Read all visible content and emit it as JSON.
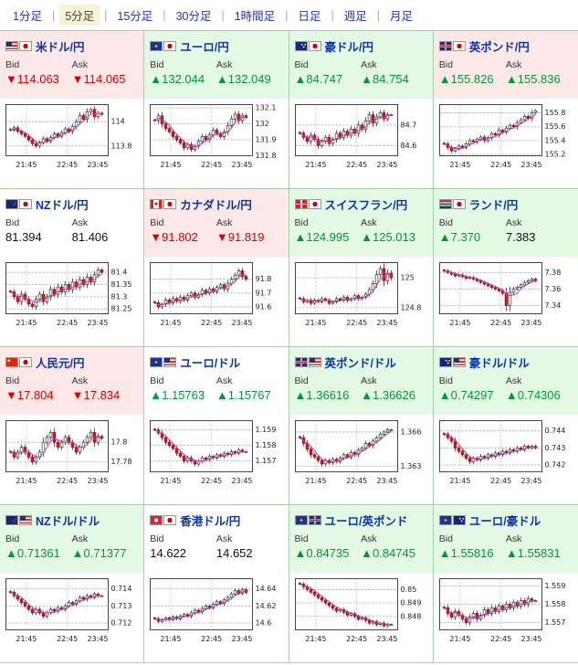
{
  "tab_separator": "|",
  "tabs": [
    {
      "id": "1min",
      "label": "1分足",
      "selected": false
    },
    {
      "id": "5min",
      "label": "5分足",
      "selected": true
    },
    {
      "id": "15min",
      "label": "15分足",
      "selected": false
    },
    {
      "id": "30min",
      "label": "30分足",
      "selected": false
    },
    {
      "id": "1hour",
      "label": "1時間足",
      "selected": false
    },
    {
      "id": "daily",
      "label": "日足",
      "selected": false
    },
    {
      "id": "weekly",
      "label": "週足",
      "selected": false
    },
    {
      "id": "monthly",
      "label": "月足",
      "selected": false
    }
  ],
  "labels": {
    "bid": "Bid",
    "ask": "Ask"
  },
  "glyphs": {
    "up": "▲",
    "down": "▼",
    "none": ""
  },
  "colors": {
    "up_text": "#009933",
    "down_text": "#dd0000",
    "flat_text": "#111111",
    "header_up": "#e4f9e4",
    "header_down": "#fde8e8",
    "header_flat": "#ffffff",
    "pair_link": "#0a35a8",
    "tab_link": "#2233cc",
    "ma_line": "#c03ac0",
    "candle_down_fill": "#c42020",
    "candle_down_stroke": "#8f1515",
    "candle_up_fill": "#ffffff",
    "candle_up_stroke": "#333333",
    "grid_line": "#999999"
  },
  "panels": [
    {
      "id": "usdjpy",
      "pair": "米ドル/円",
      "flags": [
        "us",
        "jp"
      ],
      "tone": "down",
      "bid": {
        "dir": "down",
        "value": "114.063"
      },
      "ask": {
        "dir": "down",
        "value": "114.065"
      },
      "chart": {
        "ymin": 113.72,
        "ymax": 114.14,
        "yticks": [
          {
            "v": 114,
            "t": "114"
          },
          {
            "v": 113.8,
            "t": "113.8"
          }
        ],
        "xlabels": [
          "21:45",
          "22:45",
          "23:45"
        ],
        "closes": [
          113.93,
          113.95,
          113.92,
          113.9,
          113.88,
          113.85,
          113.82,
          113.8,
          113.83,
          113.86,
          113.84,
          113.87,
          113.9,
          113.88,
          113.91,
          113.94,
          113.92,
          113.96,
          114.0,
          114.05,
          114.02,
          114.08,
          114.1,
          114.04,
          114.07,
          114.06
        ]
      }
    },
    {
      "id": "eurjpy",
      "pair": "ユーロ/円",
      "flags": [
        "eu",
        "jp"
      ],
      "tone": "up",
      "bid": {
        "dir": "up",
        "value": "132.044"
      },
      "ask": {
        "dir": "up",
        "value": "132.049"
      },
      "chart": {
        "ymin": 131.8,
        "ymax": 132.12,
        "yticks": [
          {
            "v": 132.1,
            "t": "132.1"
          },
          {
            "v": 132,
            "t": "132"
          },
          {
            "v": 131.9,
            "t": "131.9"
          },
          {
            "v": 131.8,
            "t": "131.8"
          }
        ],
        "xlabels": [
          "21:45",
          "22:45",
          "23:45"
        ],
        "closes": [
          132.02,
          132.05,
          132.0,
          131.97,
          131.95,
          131.92,
          131.9,
          131.88,
          131.85,
          131.87,
          131.84,
          131.86,
          131.89,
          131.92,
          131.9,
          131.93,
          131.96,
          131.94,
          131.92,
          131.95,
          131.99,
          132.03,
          132.06,
          132.02,
          132.05,
          132.04
        ]
      }
    },
    {
      "id": "audjpy",
      "pair": "豪ドル/円",
      "flags": [
        "au",
        "jp"
      ],
      "tone": "up",
      "bid": {
        "dir": "up",
        "value": "84.747"
      },
      "ask": {
        "dir": "up",
        "value": "84.754"
      },
      "chart": {
        "ymin": 84.55,
        "ymax": 84.8,
        "yticks": [
          {
            "v": 84.7,
            "t": "84.7"
          },
          {
            "v": 84.6,
            "t": "84.6"
          }
        ],
        "xlabels": [
          "21:45",
          "22:45",
          "23:45"
        ],
        "closes": [
          84.66,
          84.64,
          84.62,
          84.65,
          84.63,
          84.6,
          84.62,
          84.64,
          84.61,
          84.63,
          84.66,
          84.64,
          84.67,
          84.65,
          84.68,
          84.66,
          84.7,
          84.68,
          84.72,
          84.75,
          84.71,
          84.74,
          84.76,
          84.73,
          84.75,
          84.75
        ]
      }
    },
    {
      "id": "gbpjpy",
      "pair": "英ポンド/円",
      "flags": [
        "gb",
        "jp"
      ],
      "tone": "down",
      "bid": {
        "dir": "up",
        "value": "155.826"
      },
      "ask": {
        "dir": "up",
        "value": "155.836"
      },
      "chart": {
        "ymin": 155.18,
        "ymax": 155.92,
        "yticks": [
          {
            "v": 155.8,
            "t": "155.8"
          },
          {
            "v": 155.6,
            "t": "155.6"
          },
          {
            "v": 155.4,
            "t": "155.4"
          },
          {
            "v": 155.2,
            "t": "155.2"
          }
        ],
        "xlabels": [
          "21:45",
          "22:45",
          "23:45"
        ],
        "closes": [
          155.35,
          155.3,
          155.25,
          155.28,
          155.32,
          155.3,
          155.35,
          155.4,
          155.38,
          155.42,
          155.45,
          155.4,
          155.44,
          155.5,
          155.48,
          155.55,
          155.52,
          155.58,
          155.62,
          155.6,
          155.66,
          155.7,
          155.75,
          155.72,
          155.8,
          155.83
        ]
      }
    },
    {
      "id": "nzdjpy",
      "pair": "NZドル/円",
      "flags": [
        "nz",
        "jp"
      ],
      "tone": "flat",
      "bid": {
        "dir": "none",
        "value": "81.394"
      },
      "ask": {
        "dir": "none",
        "value": "81.406"
      },
      "chart": {
        "ymin": 81.23,
        "ymax": 81.44,
        "yticks": [
          {
            "v": 81.4,
            "t": "81.4"
          },
          {
            "v": 81.35,
            "t": "81.35"
          },
          {
            "v": 81.3,
            "t": "81.3"
          },
          {
            "v": 81.25,
            "t": "81.25"
          }
        ],
        "xlabels": [
          "21:45",
          "22:45",
          "23:45"
        ],
        "closes": [
          81.32,
          81.3,
          81.28,
          81.31,
          81.29,
          81.27,
          81.26,
          81.29,
          81.31,
          81.28,
          81.3,
          81.33,
          81.31,
          81.34,
          81.32,
          81.35,
          81.33,
          81.36,
          81.34,
          81.37,
          81.35,
          81.38,
          81.36,
          81.39,
          81.41,
          81.4
        ]
      }
    },
    {
      "id": "cadjpy",
      "pair": "カナダドル/円",
      "flags": [
        "ca",
        "jp"
      ],
      "tone": "down",
      "bid": {
        "dir": "down",
        "value": "91.802"
      },
      "ask": {
        "dir": "down",
        "value": "91.819"
      },
      "chart": {
        "ymin": 91.55,
        "ymax": 91.92,
        "yticks": [
          {
            "v": 91.8,
            "t": "91.8"
          },
          {
            "v": 91.7,
            "t": "91.7"
          },
          {
            "v": 91.6,
            "t": "91.6"
          }
        ],
        "xlabels": [
          "21:45",
          "22:45",
          "23:45"
        ],
        "closes": [
          91.63,
          91.6,
          91.62,
          91.65,
          91.63,
          91.66,
          91.64,
          91.67,
          91.65,
          91.68,
          91.7,
          91.67,
          91.69,
          91.72,
          91.7,
          91.73,
          91.71,
          91.74,
          91.76,
          91.73,
          91.77,
          91.8,
          91.83,
          91.86,
          91.82,
          91.8
        ]
      }
    },
    {
      "id": "chfjpy",
      "pair": "スイスフラン/円",
      "flags": [
        "ch",
        "jp"
      ],
      "tone": "up",
      "bid": {
        "dir": "up",
        "value": "124.995"
      },
      "ask": {
        "dir": "up",
        "value": "125.013"
      },
      "chart": {
        "ymin": 124.76,
        "ymax": 125.1,
        "yticks": [
          {
            "v": 125,
            "t": "125"
          },
          {
            "v": 124.8,
            "t": "124.8"
          }
        ],
        "xlabels": [
          "21:45",
          "22:45",
          "23:45"
        ],
        "closes": [
          124.86,
          124.84,
          124.85,
          124.83,
          124.85,
          124.84,
          124.86,
          124.85,
          124.83,
          124.84,
          124.86,
          124.85,
          124.87,
          124.85,
          124.86,
          124.88,
          124.86,
          124.87,
          124.89,
          124.92,
          124.96,
          125.02,
          125.06,
          124.98,
          125.03,
          125.0
        ]
      }
    },
    {
      "id": "zarjpy",
      "pair": "ランド/円",
      "flags": [
        "za",
        "jp"
      ],
      "tone": "up",
      "bid": {
        "dir": "up",
        "value": "7.370"
      },
      "ask": {
        "dir": "none",
        "value": "7.383"
      },
      "chart": {
        "ymin": 7.33,
        "ymax": 7.392,
        "yticks": [
          {
            "v": 7.38,
            "t": "7.38"
          },
          {
            "v": 7.36,
            "t": "7.36"
          },
          {
            "v": 7.34,
            "t": "7.34"
          }
        ],
        "xlabels": [
          "21:45",
          "22:45",
          "23:45"
        ],
        "closes": [
          7.382,
          7.38,
          7.378,
          7.376,
          7.377,
          7.375,
          7.373,
          7.374,
          7.372,
          7.37,
          7.368,
          7.366,
          7.364,
          7.362,
          7.36,
          7.358,
          7.355,
          7.34,
          7.356,
          7.36,
          7.362,
          7.365,
          7.368,
          7.37,
          7.372,
          7.37
        ]
      }
    },
    {
      "id": "cnyjpy",
      "pair": "人民元/円",
      "flags": [
        "cn",
        "jp"
      ],
      "tone": "down",
      "bid": {
        "dir": "down",
        "value": "17.804"
      },
      "ask": {
        "dir": "down",
        "value": "17.834"
      },
      "chart": {
        "ymin": 17.77,
        "ymax": 17.822,
        "yticks": [
          {
            "v": 17.8,
            "t": "17.8"
          },
          {
            "v": 17.78,
            "t": "17.78"
          }
        ],
        "xlabels": [
          "21:45",
          "22:45",
          "23:45"
        ],
        "closes": [
          17.79,
          17.785,
          17.79,
          17.795,
          17.79,
          17.785,
          17.78,
          17.785,
          17.79,
          17.8,
          17.805,
          17.81,
          17.8,
          17.795,
          17.8,
          17.805,
          17.8,
          17.795,
          17.79,
          17.795,
          17.8,
          17.805,
          17.81,
          17.8,
          17.806,
          17.804
        ]
      }
    },
    {
      "id": "eurusd",
      "pair": "ユーロ/ドル",
      "flags": [
        "eu",
        "us"
      ],
      "tone": "flat",
      "bid": {
        "dir": "up",
        "value": "1.15763"
      },
      "ask": {
        "dir": "up",
        "value": "1.15767"
      },
      "chart": {
        "ymin": 1.1563,
        "ymax": 1.1596,
        "yticks": [
          {
            "v": 1.159,
            "t": "1.159"
          },
          {
            "v": 1.158,
            "t": "1.158"
          },
          {
            "v": 1.157,
            "t": "1.157"
          }
        ],
        "xlabels": [
          "21:45",
          "22:45",
          "23:45"
        ],
        "closes": [
          1.159,
          1.1588,
          1.1585,
          1.1582,
          1.158,
          1.1578,
          1.1575,
          1.1573,
          1.157,
          1.1572,
          1.157,
          1.1568,
          1.157,
          1.1572,
          1.1571,
          1.1573,
          1.1572,
          1.1574,
          1.1573,
          1.1575,
          1.1574,
          1.1576,
          1.1575,
          1.1577,
          1.1576,
          1.1576
        ]
      }
    },
    {
      "id": "gbpusd",
      "pair": "英ポンド/ドル",
      "flags": [
        "gb",
        "us"
      ],
      "tone": "up",
      "bid": {
        "dir": "up",
        "value": "1.36616"
      },
      "ask": {
        "dir": "up",
        "value": "1.36626"
      },
      "chart": {
        "ymin": 1.3625,
        "ymax": 1.367,
        "yticks": [
          {
            "v": 1.366,
            "t": "1.366"
          },
          {
            "v": 1.363,
            "t": "1.363"
          }
        ],
        "xlabels": [
          "21:45",
          "22:45",
          "23:45"
        ],
        "closes": [
          1.3655,
          1.365,
          1.3645,
          1.364,
          1.3638,
          1.3635,
          1.3632,
          1.3635,
          1.3633,
          1.3636,
          1.3634,
          1.3637,
          1.364,
          1.3638,
          1.3642,
          1.364,
          1.3644,
          1.3646,
          1.365,
          1.3648,
          1.3652,
          1.3655,
          1.3658,
          1.366,
          1.3662,
          1.3662
        ]
      }
    },
    {
      "id": "audusd",
      "pair": "豪ドル/ドル",
      "flags": [
        "au",
        "us"
      ],
      "tone": "up",
      "bid": {
        "dir": "up",
        "value": "0.74297"
      },
      "ask": {
        "dir": "up",
        "value": "0.74306"
      },
      "chart": {
        "ymin": 0.7416,
        "ymax": 0.7446,
        "yticks": [
          {
            "v": 0.744,
            "t": "0.744"
          },
          {
            "v": 0.743,
            "t": "0.743"
          },
          {
            "v": 0.742,
            "t": "0.742"
          }
        ],
        "xlabels": [
          "21:45",
          "22:45",
          "23:45"
        ],
        "closes": [
          0.7438,
          0.7436,
          0.7434,
          0.743,
          0.7428,
          0.7426,
          0.7424,
          0.7422,
          0.7424,
          0.7423,
          0.7425,
          0.7424,
          0.7426,
          0.7425,
          0.7427,
          0.7426,
          0.7428,
          0.7427,
          0.7429,
          0.7428,
          0.743,
          0.7429,
          0.7431,
          0.743,
          0.7431,
          0.743
        ]
      }
    },
    {
      "id": "nzdusd",
      "pair": "NZドル/ドル",
      "flags": [
        "nz",
        "us"
      ],
      "tone": "up",
      "bid": {
        "dir": "up",
        "value": "0.71361"
      },
      "ask": {
        "dir": "up",
        "value": "0.71377"
      },
      "chart": {
        "ymin": 0.7116,
        "ymax": 0.7146,
        "yticks": [
          {
            "v": 0.714,
            "t": "0.714"
          },
          {
            "v": 0.713,
            "t": "0.713"
          },
          {
            "v": 0.712,
            "t": "0.712"
          }
        ],
        "xlabels": [
          "21:45",
          "22:45",
          "23:45"
        ],
        "closes": [
          0.7138,
          0.7136,
          0.7134,
          0.7132,
          0.713,
          0.7128,
          0.7126,
          0.7128,
          0.7126,
          0.7124,
          0.7126,
          0.7128,
          0.7127,
          0.7129,
          0.7128,
          0.713,
          0.7132,
          0.7131,
          0.7133,
          0.7135,
          0.7134,
          0.7136,
          0.7135,
          0.7137,
          0.7136,
          0.7136
        ]
      }
    },
    {
      "id": "hkdjpy",
      "pair": "香港ドル/円",
      "flags": [
        "hk",
        "jp"
      ],
      "tone": "flat",
      "bid": {
        "dir": "none",
        "value": "14.622"
      },
      "ask": {
        "dir": "none",
        "value": "14.652"
      },
      "chart": {
        "ymin": 14.592,
        "ymax": 14.652,
        "yticks": [
          {
            "v": 14.64,
            "t": "14.64"
          },
          {
            "v": 14.62,
            "t": "14.62"
          },
          {
            "v": 14.6,
            "t": "14.6"
          }
        ],
        "xlabels": [
          "21:45",
          "22:45",
          "23:45"
        ],
        "closes": [
          14.605,
          14.602,
          14.604,
          14.606,
          14.604,
          14.607,
          14.605,
          14.608,
          14.61,
          14.608,
          14.612,
          14.615,
          14.613,
          14.617,
          14.62,
          14.618,
          14.622,
          14.625,
          14.623,
          14.627,
          14.63,
          14.634,
          14.638,
          14.635,
          14.639,
          14.636
        ]
      }
    },
    {
      "id": "eurgbp",
      "pair": "ユーロ/英ポンド",
      "flags": [
        "eu",
        "gb"
      ],
      "tone": "up",
      "bid": {
        "dir": "up",
        "value": "0.84735"
      },
      "ask": {
        "dir": "up",
        "value": "0.84745"
      },
      "chart": {
        "ymin": 0.847,
        "ymax": 0.8508,
        "yticks": [
          {
            "v": 0.85,
            "t": "0.85"
          },
          {
            "v": 0.849,
            "t": "0.849"
          },
          {
            "v": 0.848,
            "t": "0.848"
          }
        ],
        "xlabels": [
          "21:45",
          "22:45",
          "23:45"
        ],
        "closes": [
          0.8504,
          0.8502,
          0.85,
          0.8498,
          0.8496,
          0.8494,
          0.8492,
          0.849,
          0.8488,
          0.8486,
          0.8484,
          0.8485,
          0.8483,
          0.8481,
          0.8482,
          0.848,
          0.8478,
          0.8479,
          0.8477,
          0.8475,
          0.8476,
          0.8474,
          0.8475,
          0.8473,
          0.8474,
          0.8474
        ]
      }
    },
    {
      "id": "euraud",
      "pair": "ユーロ/豪ドル",
      "flags": [
        "eu",
        "au"
      ],
      "tone": "up",
      "bid": {
        "dir": "up",
        "value": "1.55816"
      },
      "ask": {
        "dir": "up",
        "value": "1.55831"
      },
      "chart": {
        "ymin": 1.5566,
        "ymax": 1.5594,
        "yticks": [
          {
            "v": 1.559,
            "t": "1.559"
          },
          {
            "v": 1.558,
            "t": "1.558"
          },
          {
            "v": 1.557,
            "t": "1.557"
          }
        ],
        "xlabels": [
          "21:45",
          "22:45",
          "23:45"
        ],
        "closes": [
          1.5578,
          1.5575,
          1.5573,
          1.5576,
          1.5574,
          1.5572,
          1.557,
          1.5573,
          1.5575,
          1.5572,
          1.5574,
          1.5577,
          1.5575,
          1.5578,
          1.5576,
          1.5579,
          1.5577,
          1.558,
          1.5578,
          1.5581,
          1.5579,
          1.5582,
          1.558,
          1.5583,
          1.5582,
          1.5582
        ]
      }
    }
  ]
}
